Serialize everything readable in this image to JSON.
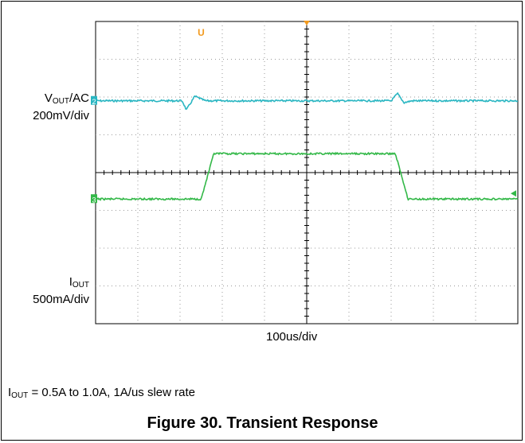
{
  "chart_data": {
    "type": "line",
    "title": "Transient Response",
    "figure_label": "Figure 30.",
    "caption": {
      "main": "I",
      "sub": "OUT",
      "rest": " = 0.5A to 1.0A, 1A/us slew rate"
    },
    "timebase": "100us/div",
    "grid": true,
    "divisions": {
      "x": 10,
      "y": 8
    },
    "series": [
      {
        "name": "VOUT/AC",
        "label_main": "V",
        "label_sub": "OUT",
        "label_rest": "/AC",
        "scale": "200mV/div",
        "channel": "2",
        "color": "#2ab6c2",
        "x_div": [
          0,
          2.05,
          2.15,
          2.35,
          2.6,
          7.0,
          7.15,
          7.3,
          7.5,
          10
        ],
        "y_div": [
          0,
          0,
          -0.1,
          0.05,
          0,
          0,
          0.08,
          -0.02,
          0,
          0
        ]
      },
      {
        "name": "IOUT",
        "label_main": "I",
        "label_sub": "OUT",
        "label_rest": "",
        "scale": "500mA/div",
        "channel": "3",
        "color": "#33b848",
        "x_div": [
          0,
          2.5,
          2.8,
          7.1,
          7.4,
          10
        ],
        "y_div": [
          0.5,
          0.5,
          1.0,
          1.0,
          0.5,
          0.5
        ]
      }
    ],
    "markers": {
      "trigger": "U",
      "channel_arrow": "2"
    }
  }
}
